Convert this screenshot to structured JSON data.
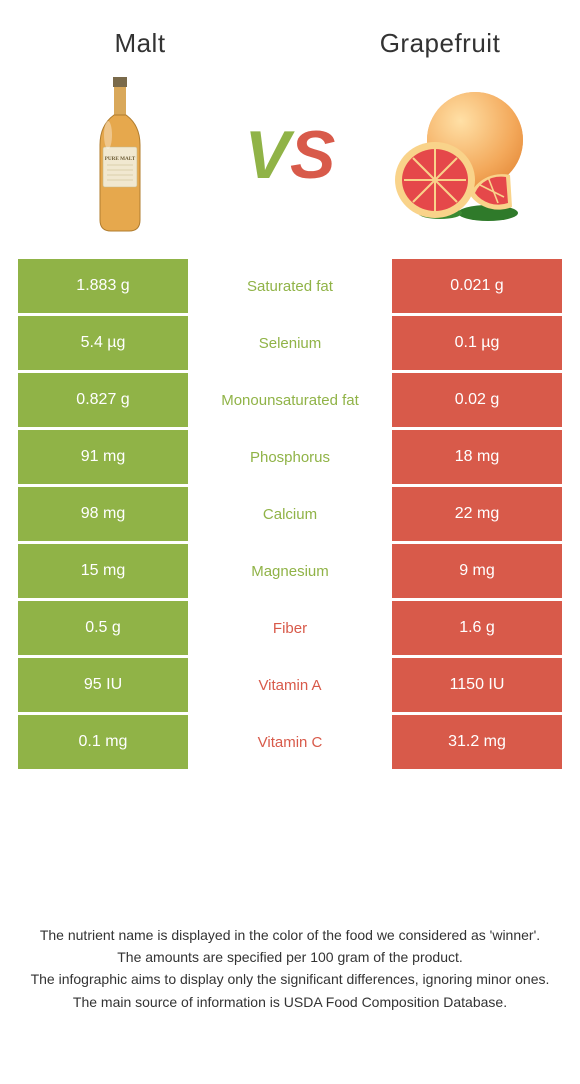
{
  "colors": {
    "left": "#90b347",
    "right": "#d85a4a",
    "text": "#333333",
    "white": "#ffffff"
  },
  "foods": {
    "left": {
      "name": "Malt"
    },
    "right": {
      "name": "Grapefruit"
    }
  },
  "vs": {
    "v": "V",
    "s": "S"
  },
  "rows": [
    {
      "label": "Saturated fat",
      "left": "1.883 g",
      "right": "0.021 g",
      "winner": "left"
    },
    {
      "label": "Selenium",
      "left": "5.4 µg",
      "right": "0.1 µg",
      "winner": "left"
    },
    {
      "label": "Monounsaturated fat",
      "left": "0.827 g",
      "right": "0.02 g",
      "winner": "left"
    },
    {
      "label": "Phosphorus",
      "left": "91 mg",
      "right": "18 mg",
      "winner": "left"
    },
    {
      "label": "Calcium",
      "left": "98 mg",
      "right": "22 mg",
      "winner": "left"
    },
    {
      "label": "Magnesium",
      "left": "15 mg",
      "right": "9 mg",
      "winner": "left"
    },
    {
      "label": "Fiber",
      "left": "0.5 g",
      "right": "1.6 g",
      "winner": "right"
    },
    {
      "label": "Vitamin A",
      "left": "95 IU",
      "right": "1150 IU",
      "winner": "right"
    },
    {
      "label": "Vitamin C",
      "left": "0.1 mg",
      "right": "31.2 mg",
      "winner": "right"
    }
  ],
  "footer": [
    "The nutrient name is displayed in the color of the food we considered as 'winner'.",
    "The amounts are specified per 100 gram of the product.",
    "The infographic aims to display only the significant differences, ignoring minor ones.",
    "The main source of information is USDA Food Composition Database."
  ]
}
